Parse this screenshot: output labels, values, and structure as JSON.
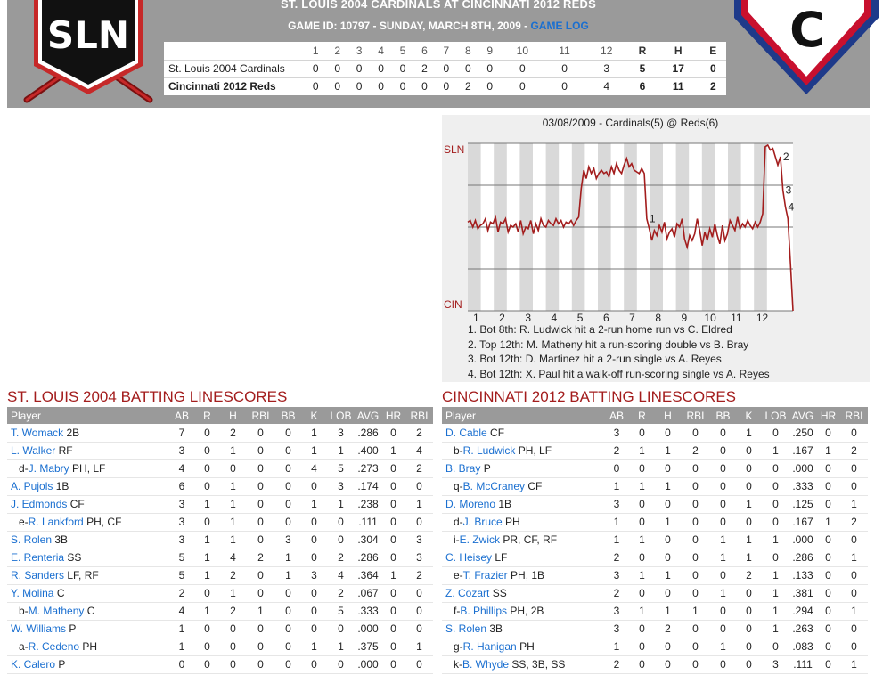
{
  "header": {
    "title": "ST. LOUIS 2004 CARDINALS AT CINCINNATI 2012 REDS",
    "game_id_text": "GAME ID: 10797 - SUNDAY, MARCH 8TH, 2009 - ",
    "game_log_label": "GAME LOG",
    "away_logo_text": "SLN",
    "home_logo_text": "C"
  },
  "colors": {
    "header_bg": "#9a9a9a",
    "title_red": "#a31d1d",
    "link_blue": "#1a6fd0",
    "wp_line": "#a31d1d",
    "reds_red": "#c8102e",
    "reds_blue": "#1e3a8a"
  },
  "linescore": {
    "innings": [
      "1",
      "2",
      "3",
      "4",
      "5",
      "6",
      "7",
      "8",
      "9",
      "10",
      "11",
      "12"
    ],
    "rhe_headers": [
      "R",
      "H",
      "E"
    ],
    "teams": [
      {
        "name": "St. Louis 2004 Cardinals",
        "bold": false,
        "runs": [
          "0",
          "0",
          "0",
          "0",
          "0",
          "2",
          "0",
          "0",
          "0",
          "0",
          "0",
          "3"
        ],
        "rhe": [
          "5",
          "17",
          "0"
        ]
      },
      {
        "name": "Cincinnati 2012 Reds",
        "bold": true,
        "runs": [
          "0",
          "0",
          "0",
          "0",
          "0",
          "0",
          "0",
          "2",
          "0",
          "0",
          "0",
          "4"
        ],
        "rhe": [
          "6",
          "11",
          "2"
        ]
      }
    ]
  },
  "chart_data": {
    "type": "line",
    "title": "03/08/2009 - Cardinals(5) @ Reds(6)",
    "ylabel_top": "SLN",
    "ylabel_bottom": "CIN",
    "x_ticks": [
      "1",
      "2",
      "3",
      "4",
      "5",
      "6",
      "7",
      "8",
      "9",
      "10",
      "11",
      "12"
    ],
    "grid": true,
    "series": [
      {
        "values": [
          0.53,
          0.54,
          0.5,
          0.54,
          0.49,
          0.51,
          0.52,
          0.55,
          0.48,
          0.53,
          0.52,
          0.56,
          0.47,
          0.53,
          0.52,
          0.55,
          0.47,
          0.51,
          0.5,
          0.52,
          0.47,
          0.54,
          0.46,
          0.5,
          0.49,
          0.54,
          0.46,
          0.52,
          0.48,
          0.55,
          0.51,
          0.5,
          0.54,
          0.52,
          0.51,
          0.55,
          0.52,
          0.54,
          0.5,
          0.53,
          0.52,
          0.54,
          0.51,
          0.54,
          0.56,
          0.73,
          0.84,
          0.79,
          0.86,
          0.82,
          0.85,
          0.79,
          0.82,
          0.84,
          0.82,
          0.83,
          0.8,
          0.86,
          0.82,
          0.88,
          0.84,
          0.82,
          0.87,
          0.91,
          0.86,
          0.88,
          0.84,
          0.83,
          0.82,
          0.85,
          0.82,
          0.55,
          0.49,
          0.42,
          0.48,
          0.45,
          0.51,
          0.47,
          0.53,
          0.43,
          0.47,
          0.49,
          0.44,
          0.52,
          0.5,
          0.55,
          0.43,
          0.38,
          0.45,
          0.42,
          0.46,
          0.55,
          0.48,
          0.39,
          0.47,
          0.42,
          0.49,
          0.44,
          0.52,
          0.45,
          0.4,
          0.51,
          0.42,
          0.46,
          0.54,
          0.51,
          0.48,
          0.56,
          0.49,
          0.52,
          0.5,
          0.54,
          0.51,
          0.49,
          0.53,
          0.5,
          0.53,
          0.58,
          0.98,
          0.99,
          0.96,
          0.97,
          0.92,
          0.87,
          0.92,
          0.72,
          0.62,
          0.55,
          0.28,
          0.0
        ],
        "annotations": [
          {
            "label": "1",
            "index": 71
          },
          {
            "label": "2",
            "index": 124
          },
          {
            "label": "3",
            "index": 125
          },
          {
            "label": "4",
            "index": 126
          }
        ]
      }
    ],
    "notes": [
      "1. Bot 8th: R. Ludwick hit a 2-run home run vs C. Eldred",
      "2. Top 12th: M. Matheny hit a run-scoring double vs B. Bray",
      "3. Bot 12th: D. Martinez hit a 2-run single vs A. Reyes",
      "4. Bot 12th: X. Paul hit a walk-off run-scoring single vs A. Reyes"
    ]
  },
  "batting_headers": [
    "Player",
    "AB",
    "R",
    "H",
    "RBI",
    "BB",
    "K",
    "LOB",
    "AVG",
    "HR",
    "RBI"
  ],
  "away_batting": {
    "title": "ST. LOUIS 2004 BATTING LINESCORES",
    "rows": [
      {
        "sub": "",
        "name": "T. Womack",
        "pos": "2B",
        "stats": [
          "7",
          "0",
          "2",
          "0",
          "0",
          "1",
          "3",
          ".286",
          "0",
          "2"
        ]
      },
      {
        "sub": "",
        "name": "L. Walker",
        "pos": "RF",
        "stats": [
          "3",
          "0",
          "1",
          "0",
          "0",
          "1",
          "1",
          ".400",
          "1",
          "4"
        ]
      },
      {
        "sub": "d-",
        "name": "J. Mabry",
        "pos": "PH, LF",
        "stats": [
          "4",
          "0",
          "0",
          "0",
          "0",
          "4",
          "5",
          ".273",
          "0",
          "2"
        ]
      },
      {
        "sub": "",
        "name": "A. Pujols",
        "pos": "1B",
        "stats": [
          "6",
          "0",
          "1",
          "0",
          "0",
          "0",
          "3",
          ".174",
          "0",
          "0"
        ]
      },
      {
        "sub": "",
        "name": "J. Edmonds",
        "pos": "CF",
        "stats": [
          "3",
          "1",
          "1",
          "0",
          "0",
          "1",
          "1",
          ".238",
          "0",
          "1"
        ]
      },
      {
        "sub": "e-",
        "name": "R. Lankford",
        "pos": "PH, CF",
        "stats": [
          "3",
          "0",
          "1",
          "0",
          "0",
          "0",
          "0",
          ".111",
          "0",
          "0"
        ]
      },
      {
        "sub": "",
        "name": "S. Rolen",
        "pos": "3B",
        "stats": [
          "3",
          "1",
          "1",
          "0",
          "3",
          "0",
          "0",
          ".304",
          "0",
          "3"
        ]
      },
      {
        "sub": "",
        "name": "E. Renteria",
        "pos": "SS",
        "stats": [
          "5",
          "1",
          "4",
          "2",
          "1",
          "0",
          "2",
          ".286",
          "0",
          "3"
        ]
      },
      {
        "sub": "",
        "name": "R. Sanders",
        "pos": "LF, RF",
        "stats": [
          "5",
          "1",
          "2",
          "0",
          "1",
          "3",
          "4",
          ".364",
          "1",
          "2"
        ]
      },
      {
        "sub": "",
        "name": "Y. Molina",
        "pos": "C",
        "stats": [
          "2",
          "0",
          "1",
          "0",
          "0",
          "0",
          "2",
          ".067",
          "0",
          "0"
        ]
      },
      {
        "sub": "b-",
        "name": "M. Matheny",
        "pos": "C",
        "stats": [
          "4",
          "1",
          "2",
          "1",
          "0",
          "0",
          "5",
          ".333",
          "0",
          "0"
        ]
      },
      {
        "sub": "",
        "name": "W. Williams",
        "pos": "P",
        "stats": [
          "1",
          "0",
          "0",
          "0",
          "0",
          "0",
          "0",
          ".000",
          "0",
          "0"
        ]
      },
      {
        "sub": "a-",
        "name": "R. Cedeno",
        "pos": "PH",
        "stats": [
          "1",
          "0",
          "0",
          "0",
          "0",
          "1",
          "1",
          ".375",
          "0",
          "1"
        ]
      },
      {
        "sub": "",
        "name": "K. Calero",
        "pos": "P",
        "stats": [
          "0",
          "0",
          "0",
          "0",
          "0",
          "0",
          "0",
          ".000",
          "0",
          "0"
        ]
      }
    ]
  },
  "home_batting": {
    "title": "CINCINNATI 2012 BATTING LINESCORES",
    "rows": [
      {
        "sub": "",
        "name": "D. Cable",
        "pos": "CF",
        "stats": [
          "3",
          "0",
          "0",
          "0",
          "0",
          "1",
          "0",
          ".250",
          "0",
          "0"
        ]
      },
      {
        "sub": "b-",
        "name": "R. Ludwick",
        "pos": "PH, LF",
        "stats": [
          "2",
          "1",
          "1",
          "2",
          "0",
          "0",
          "1",
          ".167",
          "1",
          "2"
        ]
      },
      {
        "sub": "",
        "name": "B. Bray",
        "pos": "P",
        "stats": [
          "0",
          "0",
          "0",
          "0",
          "0",
          "0",
          "0",
          ".000",
          "0",
          "0"
        ]
      },
      {
        "sub": "q-",
        "name": "B. McCraney",
        "pos": "CF",
        "stats": [
          "1",
          "1",
          "1",
          "0",
          "0",
          "0",
          "0",
          ".333",
          "0",
          "0"
        ]
      },
      {
        "sub": "",
        "name": "D. Moreno",
        "pos": "1B",
        "stats": [
          "3",
          "0",
          "0",
          "0",
          "0",
          "1",
          "0",
          ".125",
          "0",
          "1"
        ]
      },
      {
        "sub": "d-",
        "name": "J. Bruce",
        "pos": "PH",
        "stats": [
          "1",
          "0",
          "1",
          "0",
          "0",
          "0",
          "0",
          ".167",
          "1",
          "2"
        ]
      },
      {
        "sub": "i-",
        "name": "E. Zwick",
        "pos": "PR, CF, RF",
        "stats": [
          "1",
          "1",
          "0",
          "0",
          "1",
          "1",
          "1",
          ".000",
          "0",
          "0"
        ]
      },
      {
        "sub": "",
        "name": "C. Heisey",
        "pos": "LF",
        "stats": [
          "2",
          "0",
          "0",
          "0",
          "1",
          "1",
          "0",
          ".286",
          "0",
          "1"
        ]
      },
      {
        "sub": "e-",
        "name": "T. Frazier",
        "pos": "PH, 1B",
        "stats": [
          "3",
          "1",
          "1",
          "0",
          "0",
          "2",
          "1",
          ".133",
          "0",
          "0"
        ]
      },
      {
        "sub": "",
        "name": "Z. Cozart",
        "pos": "SS",
        "stats": [
          "2",
          "0",
          "0",
          "0",
          "1",
          "0",
          "1",
          ".381",
          "0",
          "0"
        ]
      },
      {
        "sub": "f-",
        "name": "B. Phillips",
        "pos": "PH, 2B",
        "stats": [
          "3",
          "1",
          "1",
          "1",
          "0",
          "0",
          "1",
          ".294",
          "0",
          "1"
        ]
      },
      {
        "sub": "",
        "name": "S. Rolen",
        "pos": "3B",
        "stats": [
          "3",
          "0",
          "2",
          "0",
          "0",
          "0",
          "1",
          ".263",
          "0",
          "0"
        ]
      },
      {
        "sub": "g-",
        "name": "R. Hanigan",
        "pos": "PH",
        "stats": [
          "1",
          "0",
          "0",
          "0",
          "1",
          "0",
          "0",
          ".083",
          "0",
          "0"
        ]
      },
      {
        "sub": "k-",
        "name": "B. Whyde",
        "pos": "SS, 3B, SS",
        "stats": [
          "2",
          "0",
          "0",
          "0",
          "0",
          "0",
          "3",
          ".111",
          "0",
          "1"
        ]
      }
    ]
  }
}
